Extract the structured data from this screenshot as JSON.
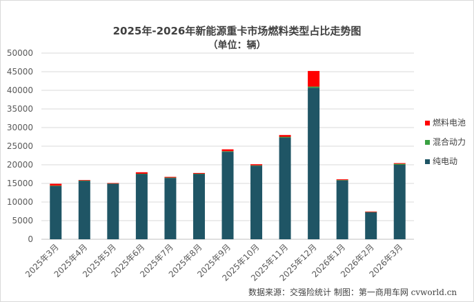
{
  "chart_data": {
    "type": "bar",
    "stacked": true,
    "title": "2025年-2026年新能源重卡市场燃料类型占比走势图",
    "subtitle": "（单位：辆）",
    "categories": [
      "2025年3月",
      "2025年4月",
      "2025年5月",
      "2025年6月",
      "2025年7月",
      "2025年8月",
      "2025年9月",
      "2025年10月",
      "2025年11月",
      "2025年12月",
      "2026年1月",
      "2026年2月",
      "2026年3月"
    ],
    "series": [
      {
        "name": "纯电动",
        "color": "#1f5565",
        "values": [
          14300,
          15650,
          14900,
          17500,
          16450,
          17500,
          23500,
          19750,
          27300,
          40700,
          15800,
          7250,
          20000
        ]
      },
      {
        "name": "混合动力",
        "color": "#3aa142",
        "values": [
          100,
          100,
          50,
          100,
          100,
          100,
          150,
          100,
          200,
          300,
          100,
          50,
          250
        ]
      },
      {
        "name": "燃料电池",
        "color": "#ff0000",
        "values": [
          500,
          100,
          100,
          400,
          200,
          200,
          500,
          300,
          500,
          4200,
          200,
          150,
          200
        ]
      }
    ],
    "yticks": [
      0,
      5000,
      10000,
      15000,
      20000,
      25000,
      30000,
      35000,
      40000,
      45000,
      50000
    ],
    "ylim": [
      0,
      50000
    ],
    "grid": true,
    "legend_position": "right"
  },
  "source_note": "数据来源：交强险统计   制图：第一商用车网 cvworld.cn"
}
